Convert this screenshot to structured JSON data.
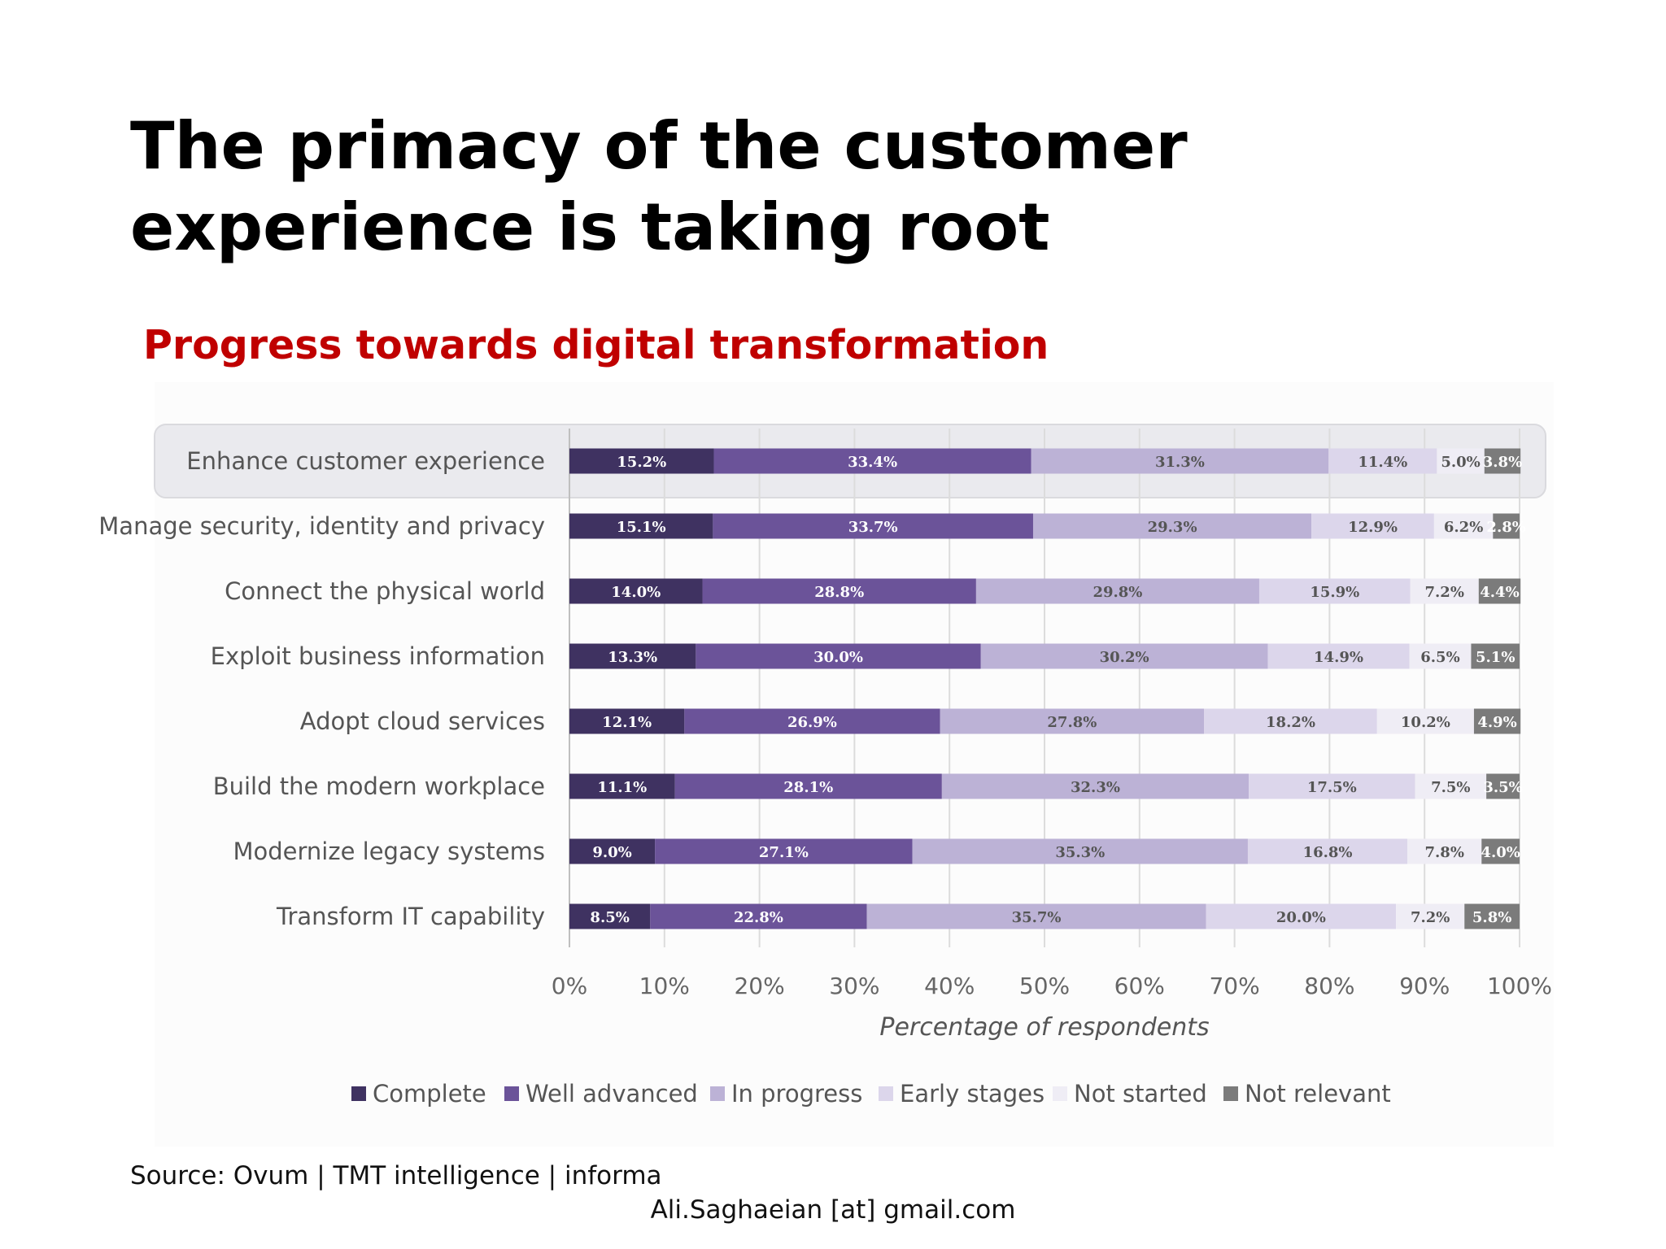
{
  "slide": {
    "title": "The primacy of the customer experience is taking root",
    "chart_heading": "Progress towards digital transformation",
    "source": "Source: Ovum | TMT intelligence | informa",
    "email": "Ali.Saghaeian [at] gmail.com"
  },
  "chart_data": {
    "type": "bar",
    "orientation": "horizontal",
    "stacked": true,
    "title": "Progress towards digital transformation",
    "xlabel": "Percentage of respondents",
    "ylabel": "",
    "xlim": [
      0,
      100
    ],
    "x_ticks": [
      "0%",
      "10%",
      "20%",
      "30%",
      "40%",
      "50%",
      "60%",
      "70%",
      "80%",
      "90%",
      "100%"
    ],
    "grid": "vertical",
    "legend_position": "bottom",
    "highlighted_category": "Enhance customer experience",
    "categories": [
      "Enhance customer experience",
      "Manage security, identity and privacy",
      "Connect the physical world",
      "Exploit business information",
      "Adopt cloud services",
      "Build the modern workplace",
      "Modernize legacy systems",
      "Transform IT capability"
    ],
    "series": [
      {
        "name": "Complete",
        "color": "#3f3261",
        "label_color": "#ffffff",
        "values": [
          15.2,
          15.1,
          14.0,
          13.3,
          12.1,
          11.1,
          9.0,
          8.5
        ],
        "labels": [
          "15.2%",
          "15.1%",
          "14.0%",
          "13.3%",
          "12.1%",
          "11.1%",
          "9.0%",
          "8.5%"
        ]
      },
      {
        "name": "Well advanced",
        "color": "#6b5399",
        "label_color": "#ffffff",
        "values": [
          33.4,
          33.7,
          28.8,
          30.0,
          26.9,
          28.1,
          27.1,
          22.8
        ],
        "labels": [
          "33.4%",
          "33.7%",
          "28.8%",
          "30.0%",
          "26.9%",
          "28.1%",
          "27.1%",
          "22.8%"
        ]
      },
      {
        "name": "In progress",
        "color": "#bcb2d6",
        "label_color": "#555555",
        "values": [
          31.3,
          29.3,
          29.8,
          30.2,
          27.8,
          32.3,
          35.3,
          35.7
        ],
        "labels": [
          "31.3%",
          "29.3%",
          "29.8%",
          "30.2%",
          "27.8%",
          "32.3%",
          "35.3%",
          "35.7%"
        ]
      },
      {
        "name": "Early stages",
        "color": "#dcd6eb",
        "label_color": "#555555",
        "values": [
          11.4,
          12.9,
          15.9,
          14.9,
          18.2,
          17.5,
          16.8,
          20.0
        ],
        "labels": [
          "11.4%",
          "12.9%",
          "15.9%",
          "14.9%",
          "18.2%",
          "17.5%",
          "16.8%",
          "20.0%"
        ]
      },
      {
        "name": "Not started",
        "color": "#efedf5",
        "label_color": "#555555",
        "values": [
          5.0,
          6.2,
          7.2,
          6.5,
          10.2,
          7.5,
          7.8,
          7.2
        ],
        "labels": [
          "5.0%",
          "6.2%",
          "7.2%",
          "6.5%",
          "10.2%",
          "7.5%",
          "7.8%",
          "7.2%"
        ]
      },
      {
        "name": "Not relevant",
        "color": "#7b7b7b",
        "label_color": "#ffffff",
        "values": [
          3.8,
          2.8,
          4.4,
          5.1,
          4.9,
          3.5,
          4.0,
          5.8
        ],
        "labels": [
          "3.8%",
          "2.8%",
          "4.4%",
          "5.1%",
          "4.9%",
          "3.5%",
          "4.0%",
          "5.8%"
        ]
      }
    ]
  }
}
